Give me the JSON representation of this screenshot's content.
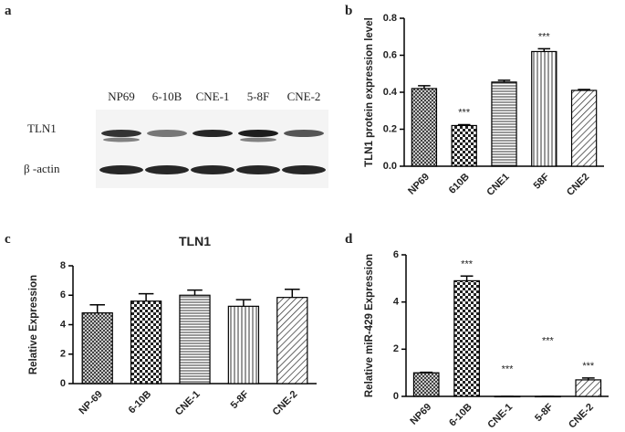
{
  "blot": {
    "label": "a",
    "lanes": [
      "NP69",
      "6-10B",
      "CNE-1",
      "5-8F",
      "CNE-2"
    ],
    "rows": [
      "TLN1",
      "β -actin"
    ]
  },
  "chart_data": [
    {
      "type": "bar",
      "panel_label": "b",
      "y_label": "TLN1 protein expression level",
      "categories": [
        "NP69",
        "610B",
        "CNE1",
        "58F",
        "CNE2"
      ],
      "values": [
        0.42,
        0.22,
        0.455,
        0.62,
        0.41
      ],
      "errors": [
        0.015,
        0.005,
        0.01,
        0.015,
        0.005
      ],
      "annotations": [
        null,
        "***",
        null,
        "***",
        null
      ],
      "ylim": [
        0,
        0.8
      ],
      "yticks": [
        {
          "value": 0,
          "label": "0.0"
        },
        0.2,
        0.4,
        0.6,
        0.8
      ]
    },
    {
      "type": "bar",
      "panel_label": "c",
      "title": "TLN1",
      "y_label": "Relative Expression",
      "categories": [
        "NP-69",
        "6-10B",
        "CNE-1",
        "5-8F",
        "CNE-2"
      ],
      "values": [
        4.8,
        5.6,
        6.0,
        5.25,
        5.85
      ],
      "errors": [
        0.55,
        0.5,
        0.35,
        0.45,
        0.55
      ],
      "ylim": [
        0,
        8
      ],
      "yticks": [
        0,
        2,
        4,
        6,
        8
      ]
    },
    {
      "type": "bar",
      "panel_label": "d",
      "y_label": "Relative miR-429 Expression",
      "categories": [
        "NP69",
        "6-10B",
        "CNE-1",
        "5-8F",
        "CNE-2"
      ],
      "values": [
        1.0,
        4.9,
        0,
        0,
        0.7
      ],
      "errors": [
        0.02,
        0.2,
        0,
        0,
        0.08
      ],
      "annotations": [
        null,
        "***",
        "***",
        "***",
        "***"
      ],
      "ylim": [
        0,
        6
      ],
      "yticks": [
        0,
        2,
        4,
        6
      ]
    }
  ]
}
